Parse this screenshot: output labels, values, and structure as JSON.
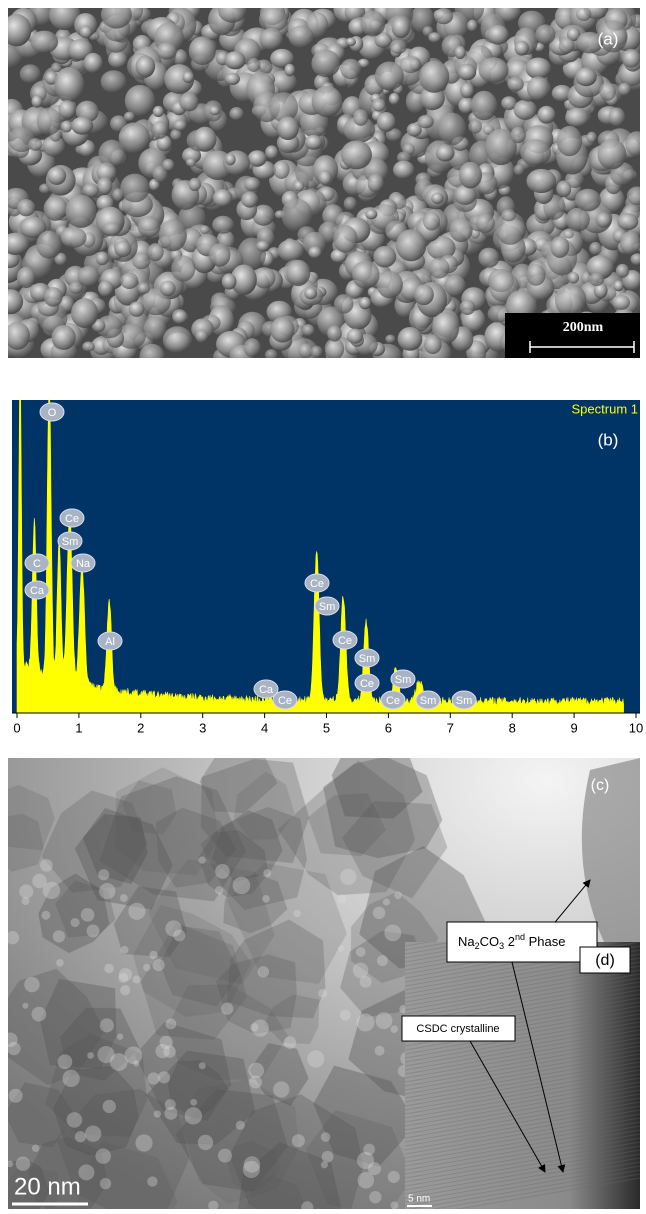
{
  "panel_a": {
    "label": "(a)",
    "scale_bar": "200nm"
  },
  "panel_b": {
    "label": "(b)",
    "spectrum_title": "Spectrum 1",
    "xticks": [
      0,
      1,
      2,
      3,
      4,
      5,
      6,
      7,
      8,
      9,
      10
    ],
    "peak_labels": [
      "O",
      "Ce",
      "Sm",
      "C",
      "Na",
      "Ca",
      "Al",
      "Ce",
      "Sm",
      "Ce",
      "Sm",
      "Ca",
      "Ce",
      "Ce",
      "Sm",
      "Ce",
      "Sm",
      "Sm"
    ]
  },
  "panel_c": {
    "label": "(c)",
    "scale_bar": "20 nm",
    "annotation": {
      "parts": [
        "Na",
        "2",
        "CO",
        "3",
        " 2",
        "nd",
        " Phase"
      ]
    }
  },
  "panel_d": {
    "label": "(d)",
    "scale_bar": "5 nm",
    "annotation": "CSDC crystalline"
  }
}
